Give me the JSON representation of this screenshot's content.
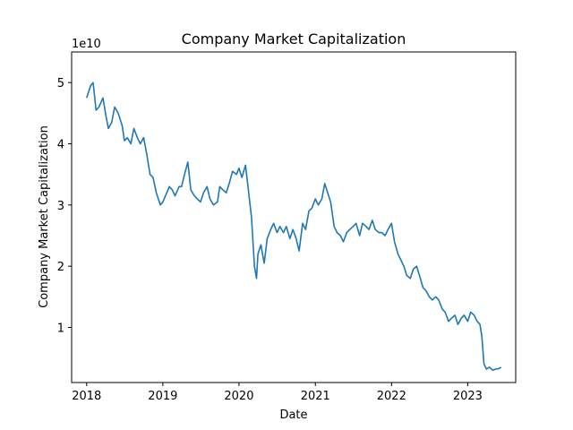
{
  "chart_data": {
    "type": "line",
    "title": "Company Market Capitalization",
    "xlabel": "Date",
    "ylabel": "Company Market Capitalization",
    "y_scale_label": "1e10",
    "y_scale": 10000000000,
    "xlim": [
      "2017-10-21",
      "2023-08-19"
    ],
    "ylim": [
      0.1,
      5.5
    ],
    "x_ticks": [
      {
        "date": "2018-01-01",
        "label": "2018"
      },
      {
        "date": "2019-01-01",
        "label": "2019"
      },
      {
        "date": "2020-01-01",
        "label": "2020"
      },
      {
        "date": "2021-01-01",
        "label": "2021"
      },
      {
        "date": "2022-01-01",
        "label": "2022"
      },
      {
        "date": "2023-01-01",
        "label": "2023"
      }
    ],
    "y_ticks": [
      {
        "value": 1,
        "label": "1"
      },
      {
        "value": 2,
        "label": "2"
      },
      {
        "value": 3,
        "label": "3"
      },
      {
        "value": 4,
        "label": "4"
      },
      {
        "value": 5,
        "label": "5"
      }
    ],
    "grid": false,
    "legend": "none",
    "series": [
      {
        "color": "#1f77b4",
        "x": [
          "2018-01-01",
          "2018-01-20",
          "2018-02-01",
          "2018-02-15",
          "2018-03-01",
          "2018-03-20",
          "2018-04-01",
          "2018-04-15",
          "2018-05-01",
          "2018-05-15",
          "2018-06-01",
          "2018-06-20",
          "2018-07-01",
          "2018-07-15",
          "2018-08-01",
          "2018-08-15",
          "2018-09-01",
          "2018-09-15",
          "2018-10-01",
          "2018-10-15",
          "2018-11-01",
          "2018-11-15",
          "2018-12-01",
          "2018-12-20",
          "2019-01-01",
          "2019-01-20",
          "2019-02-01",
          "2019-02-15",
          "2019-03-01",
          "2019-03-20",
          "2019-04-01",
          "2019-04-15",
          "2019-05-01",
          "2019-05-15",
          "2019-06-01",
          "2019-06-15",
          "2019-07-01",
          "2019-07-15",
          "2019-08-01",
          "2019-08-15",
          "2019-09-01",
          "2019-09-20",
          "2019-10-01",
          "2019-10-15",
          "2019-11-01",
          "2019-11-15",
          "2019-12-01",
          "2019-12-20",
          "2020-01-01",
          "2020-01-15",
          "2020-02-01",
          "2020-02-15",
          "2020-03-01",
          "2020-03-15",
          "2020-03-25",
          "2020-04-01",
          "2020-04-15",
          "2020-05-01",
          "2020-05-15",
          "2020-06-01",
          "2020-06-15",
          "2020-07-01",
          "2020-07-15",
          "2020-08-01",
          "2020-08-15",
          "2020-09-01",
          "2020-09-15",
          "2020-10-01",
          "2020-10-15",
          "2020-11-01",
          "2020-11-15",
          "2020-12-01",
          "2020-12-15",
          "2021-01-01",
          "2021-01-15",
          "2021-02-01",
          "2021-02-15",
          "2021-03-01",
          "2021-03-15",
          "2021-04-01",
          "2021-04-15",
          "2021-05-01",
          "2021-05-15",
          "2021-06-01",
          "2021-06-15",
          "2021-07-01",
          "2021-07-15",
          "2021-08-01",
          "2021-08-15",
          "2021-09-01",
          "2021-09-15",
          "2021-10-01",
          "2021-10-15",
          "2021-11-01",
          "2021-11-15",
          "2021-12-01",
          "2021-12-15",
          "2022-01-01",
          "2022-01-15",
          "2022-02-01",
          "2022-02-15",
          "2022-03-01",
          "2022-03-15",
          "2022-04-01",
          "2022-04-15",
          "2022-05-01",
          "2022-05-15",
          "2022-06-01",
          "2022-06-15",
          "2022-07-01",
          "2022-07-15",
          "2022-08-01",
          "2022-08-15",
          "2022-09-01",
          "2022-09-15",
          "2022-10-01",
          "2022-10-15",
          "2022-11-01",
          "2022-11-15",
          "2022-12-01",
          "2022-12-15",
          "2023-01-01",
          "2023-01-15",
          "2023-02-01",
          "2023-02-15",
          "2023-03-01",
          "2023-03-10",
          "2023-03-20",
          "2023-04-01",
          "2023-04-15",
          "2023-05-01",
          "2023-05-15",
          "2023-06-01",
          "2023-06-10"
        ],
        "values": [
          4.75,
          4.95,
          5.0,
          4.55,
          4.6,
          4.75,
          4.5,
          4.25,
          4.35,
          4.6,
          4.5,
          4.3,
          4.05,
          4.1,
          4.0,
          4.25,
          4.1,
          4.0,
          4.1,
          3.85,
          3.5,
          3.45,
          3.2,
          3.0,
          3.05,
          3.2,
          3.3,
          3.25,
          3.15,
          3.3,
          3.3,
          3.5,
          3.7,
          3.25,
          3.15,
          3.1,
          3.05,
          3.2,
          3.3,
          3.1,
          3.0,
          3.05,
          3.3,
          3.25,
          3.2,
          3.35,
          3.55,
          3.5,
          3.6,
          3.45,
          3.65,
          3.25,
          2.8,
          2.0,
          1.8,
          2.2,
          2.35,
          2.05,
          2.45,
          2.6,
          2.7,
          2.55,
          2.65,
          2.55,
          2.65,
          2.45,
          2.6,
          2.45,
          2.25,
          2.7,
          2.6,
          2.9,
          2.95,
          3.1,
          3.0,
          3.1,
          3.35,
          3.2,
          3.05,
          2.65,
          2.55,
          2.5,
          2.4,
          2.55,
          2.6,
          2.65,
          2.7,
          2.5,
          2.7,
          2.65,
          2.6,
          2.75,
          2.6,
          2.55,
          2.55,
          2.5,
          2.6,
          2.7,
          2.4,
          2.2,
          2.1,
          2.0,
          1.85,
          1.8,
          1.95,
          2.0,
          1.85,
          1.65,
          1.6,
          1.5,
          1.45,
          1.5,
          1.45,
          1.3,
          1.25,
          1.1,
          1.15,
          1.2,
          1.05,
          1.15,
          1.2,
          1.1,
          1.25,
          1.2,
          1.1,
          1.05,
          0.85,
          0.4,
          0.32,
          0.35,
          0.3,
          0.32,
          0.33,
          0.35
        ]
      }
    ]
  }
}
